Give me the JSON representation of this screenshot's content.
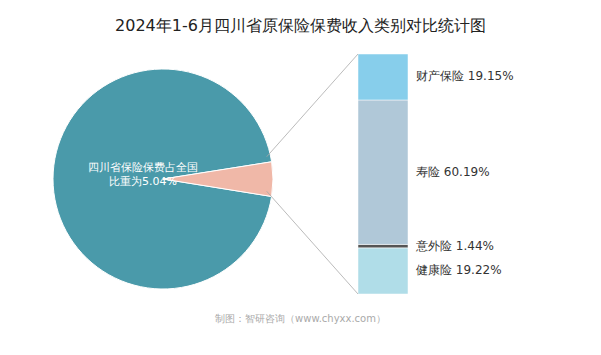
{
  "chart_data": [
    {
      "type": "pie",
      "title": "2024年1-6月四川省原保险保费收入类别对比统计图",
      "values": [
        94.96,
        5.04
      ],
      "colors": [
        "#4a9aaa",
        "#f0b8a8"
      ],
      "annotations": [
        "四川省保险保费占全国\n比重为5.04%"
      ]
    },
    {
      "type": "bar",
      "stacked": true,
      "data_labels": true,
      "tick_labels": false,
      "ylim": [
        0,
        100
      ],
      "series": [
        {
          "name": "财产保险",
          "color": "#87CEEB",
          "values": [
            19.15
          ],
          "value_labels": [
            "19.15%"
          ]
        },
        {
          "name": "寿险",
          "color": "#b0c8d8",
          "values": [
            60.19
          ],
          "value_labels": [
            "60.19%"
          ]
        },
        {
          "name": "意外险",
          "color": "#555555",
          "values": [
            1.44
          ],
          "value_labels": [
            "1.44%"
          ]
        },
        {
          "name": "健康险",
          "color": "#b0dde8",
          "values": [
            19.22
          ],
          "value_labels": [
            "19.22%"
          ]
        }
      ],
      "annotations": [
        "制图：智研咨询（www.chyxx.com）"
      ]
    }
  ]
}
